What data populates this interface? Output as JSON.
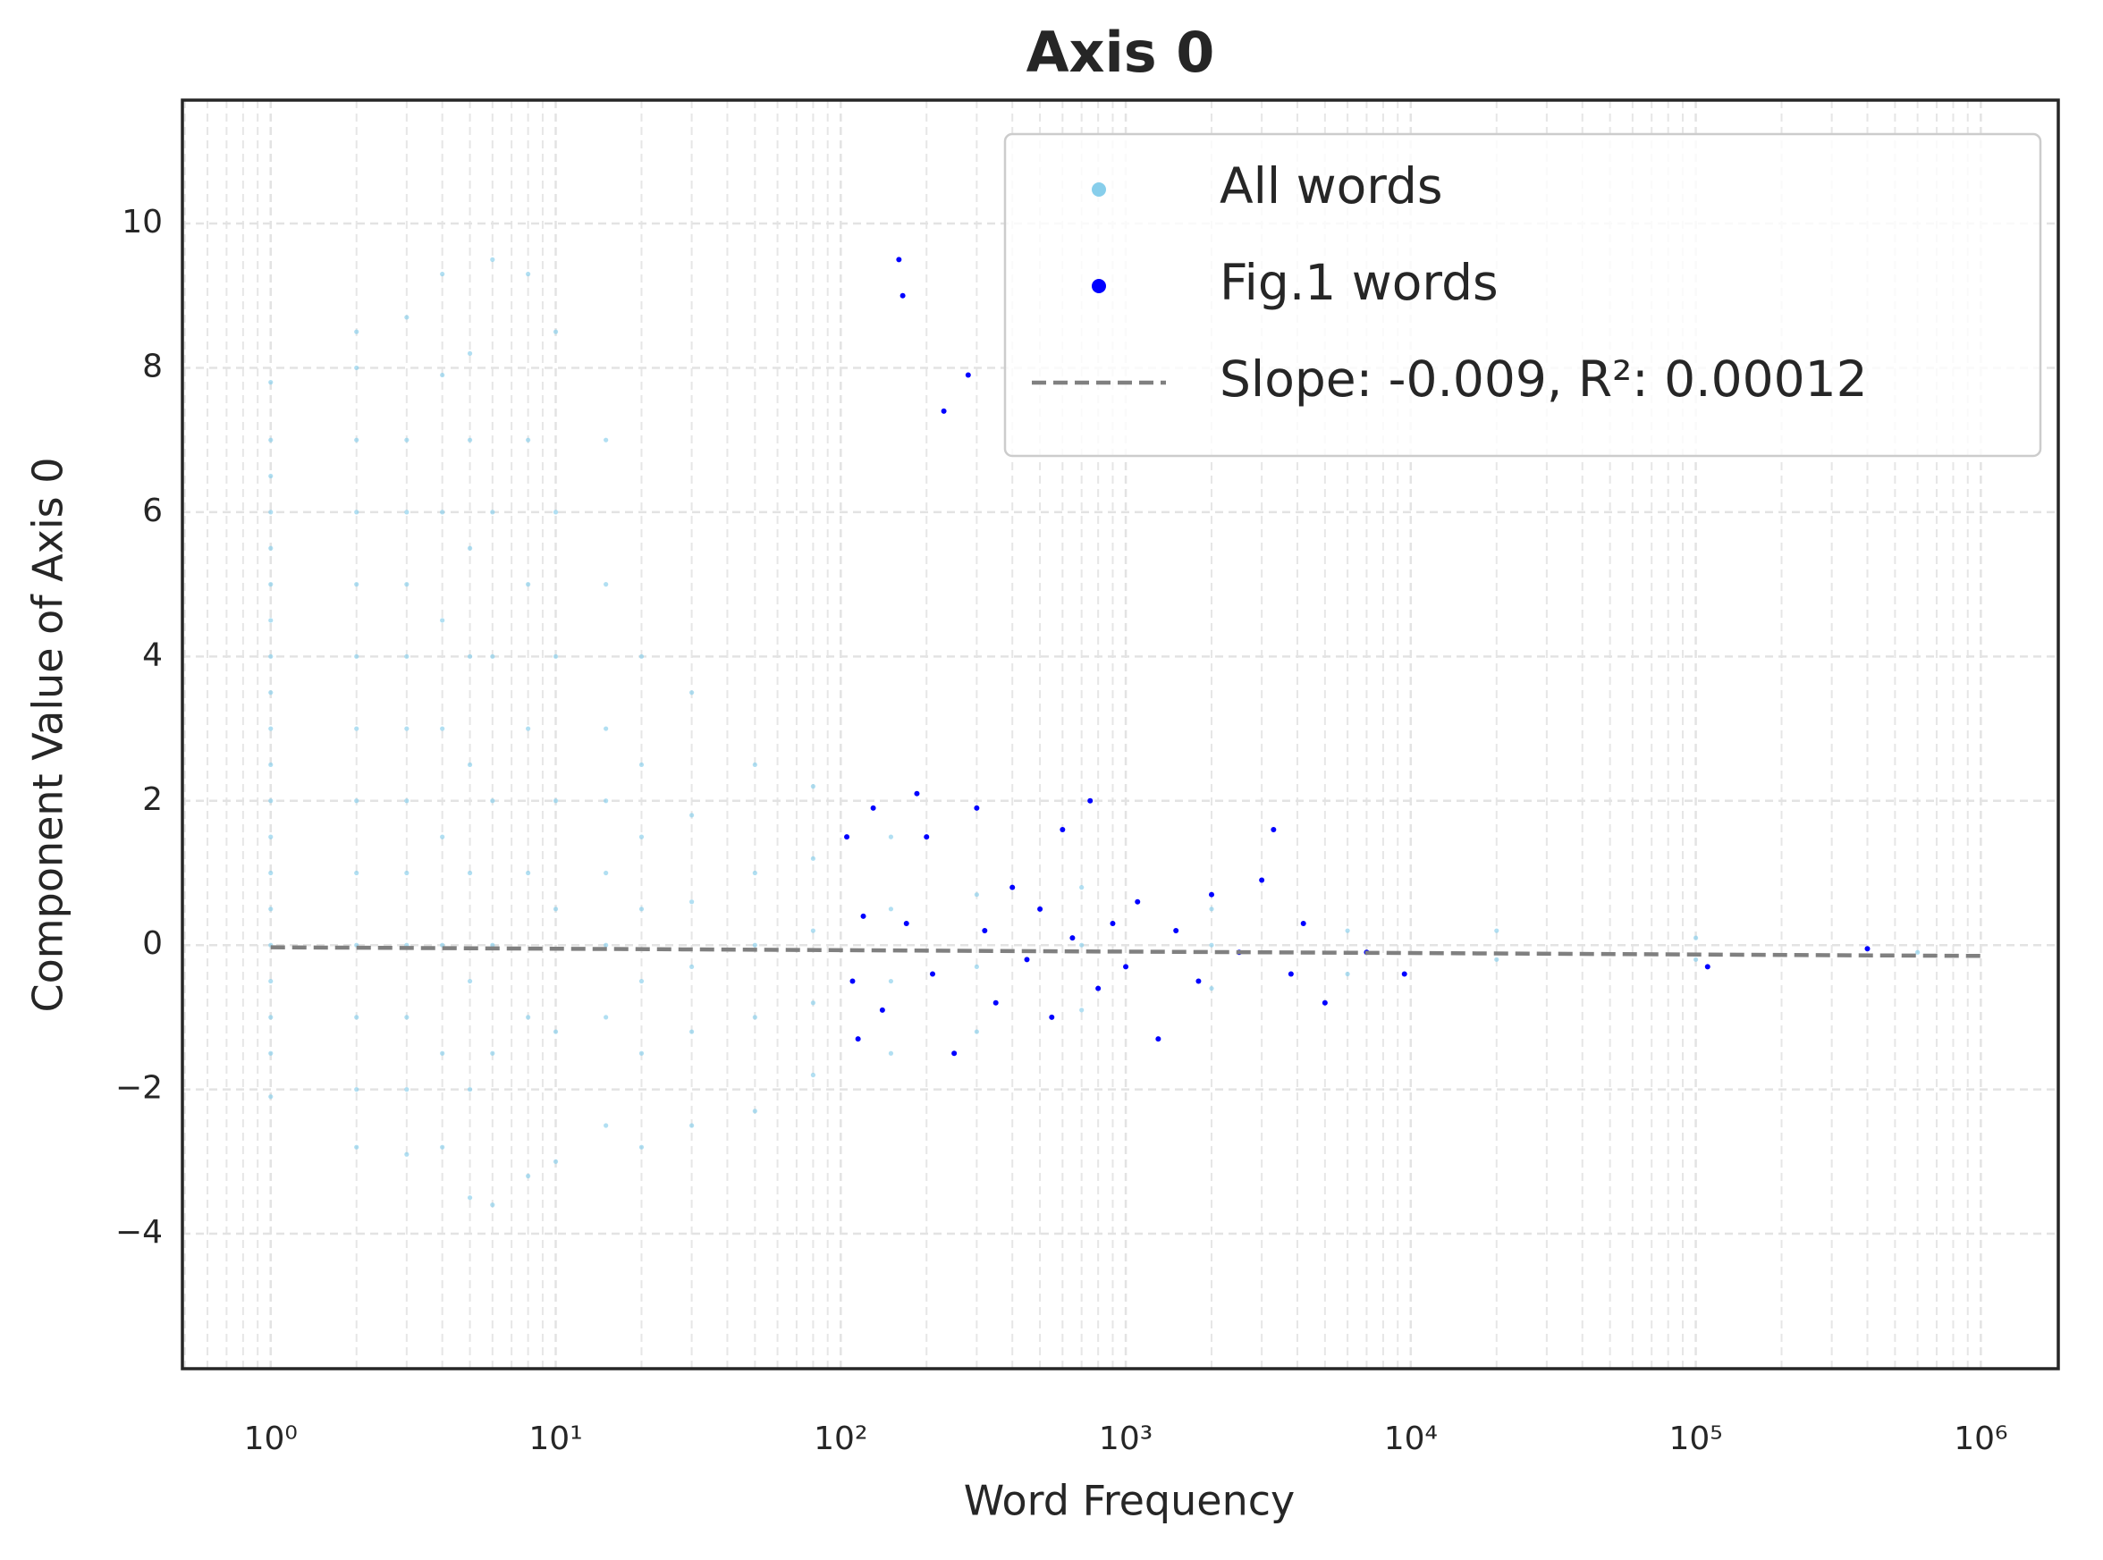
{
  "chart_data": {
    "type": "scatter",
    "title": "Axis 0",
    "xlabel": "Word Frequency",
    "ylabel": "Component Value of Axis 0",
    "xscale": "log",
    "xlim": [
      0.49,
      1870000
    ],
    "ylim": [
      -5.87,
      11.71
    ],
    "xticks": [
      {
        "value": 1,
        "label": "10⁰"
      },
      {
        "value": 10,
        "label": "10¹"
      },
      {
        "value": 100,
        "label": "10²"
      },
      {
        "value": 1000,
        "label": "10³"
      },
      {
        "value": 10000,
        "label": "10⁴"
      },
      {
        "value": 100000,
        "label": "10⁵"
      },
      {
        "value": 1000000,
        "label": "10⁶"
      }
    ],
    "xminorticks": [
      0.5,
      0.6,
      0.7,
      0.8,
      0.9,
      2,
      3,
      4,
      5,
      6,
      7,
      8,
      9,
      20,
      30,
      40,
      50,
      60,
      70,
      80,
      90,
      200,
      300,
      400,
      500,
      600,
      700,
      800,
      900,
      2000,
      3000,
      4000,
      5000,
      6000,
      7000,
      8000,
      9000,
      20000,
      30000,
      40000,
      50000,
      60000,
      70000,
      80000,
      90000,
      200000,
      300000,
      400000,
      500000,
      600000,
      700000,
      800000,
      900000
    ],
    "yticks": [
      {
        "value": -4,
        "label": "−4"
      },
      {
        "value": -2,
        "label": "−2"
      },
      0,
      2,
      4,
      6,
      8,
      10
    ],
    "grid": true,
    "legend": "upper right",
    "series": [
      {
        "name": "All words",
        "color": "#87ceeb",
        "kind": "scatter",
        "x": [
          1,
          1,
          1,
          1,
          1,
          1,
          1,
          1,
          1,
          1,
          1,
          1,
          1,
          1,
          1,
          1,
          1,
          1,
          1,
          1,
          2,
          2,
          2,
          2,
          2,
          2,
          2,
          2,
          2,
          2,
          2,
          2,
          2,
          3,
          3,
          3,
          3,
          3,
          3,
          3,
          3,
          3,
          3,
          3,
          3,
          4,
          4,
          4,
          4,
          4,
          4,
          4,
          4,
          4,
          5,
          5,
          5,
          5,
          5,
          5,
          5,
          5,
          5,
          6,
          6,
          6,
          6,
          6,
          6,
          6,
          8,
          8,
          8,
          8,
          8,
          8,
          8,
          10,
          10,
          10,
          10,
          10,
          10,
          10,
          15,
          15,
          15,
          15,
          15,
          15,
          15,
          15,
          20,
          20,
          20,
          20,
          20,
          20,
          20,
          30,
          30,
          30,
          30,
          30,
          30,
          50,
          50,
          50,
          50,
          50,
          80,
          80,
          80,
          80,
          80,
          150,
          150,
          150,
          150,
          300,
          300,
          300,
          700,
          700,
          700,
          2000,
          2000,
          2000,
          6000,
          6000,
          20000,
          20000,
          100000,
          100000,
          600000
        ],
        "values": [
          -2.1,
          -1.5,
          -1,
          -0.5,
          0,
          0.5,
          1,
          1.5,
          2,
          2.5,
          3,
          3.5,
          4,
          4.5,
          5,
          5.5,
          6,
          6.5,
          7,
          7.8,
          -2.8,
          -2,
          -1,
          0,
          1,
          2,
          3,
          4,
          5,
          6,
          7,
          8,
          8.5,
          -2.9,
          -2,
          -1,
          0,
          1,
          2,
          3,
          4,
          5,
          6,
          7,
          8.7,
          -2.8,
          -1.5,
          0,
          1.5,
          3,
          4.5,
          6,
          7.9,
          9.3,
          -3.5,
          -2,
          -0.5,
          1,
          2.5,
          4,
          5.5,
          7,
          8.2,
          -3.6,
          -1.5,
          0,
          2,
          4,
          6,
          9.5,
          -3.2,
          -1,
          1,
          3,
          5,
          7,
          9.3,
          -3,
          -1.2,
          0.5,
          2,
          4,
          6,
          8.5,
          -2.5,
          -1,
          0,
          1,
          2,
          3,
          5,
          7,
          -2.8,
          -1.5,
          -0.5,
          0.5,
          1.5,
          2.5,
          4,
          -2.5,
          -1.2,
          -0.3,
          0.6,
          1.8,
          3.5,
          -2.3,
          -1,
          0,
          1,
          2.5,
          -1.8,
          -0.8,
          0.2,
          1.2,
          2.2,
          -1.5,
          -0.5,
          0.5,
          1.5,
          -1.2,
          -0.3,
          0.7,
          -0.9,
          0,
          0.8,
          -0.6,
          0,
          0.5,
          -0.4,
          0.2,
          -0.2,
          0.2,
          -0.2,
          0.1,
          -0.1
        ]
      },
      {
        "name": "Fig.1 words",
        "color": "#0000ff",
        "kind": "scatter",
        "x": [
          105,
          110,
          115,
          120,
          130,
          140,
          160,
          165,
          170,
          185,
          200,
          210,
          230,
          250,
          280,
          300,
          320,
          350,
          400,
          450,
          500,
          550,
          600,
          650,
          750,
          800,
          900,
          1000,
          1100,
          1300,
          1500,
          1800,
          2000,
          2500,
          3000,
          3300,
          3800,
          4200,
          5000,
          7000,
          9500,
          110000,
          400000
        ],
        "values": [
          1.5,
          -0.5,
          -1.3,
          0.4,
          1.9,
          -0.9,
          9.5,
          9.0,
          0.3,
          2.1,
          1.5,
          -0.4,
          7.4,
          -1.5,
          7.9,
          1.9,
          0.2,
          -0.8,
          0.8,
          -0.2,
          0.5,
          -1.0,
          1.6,
          0.1,
          2.0,
          -0.6,
          0.3,
          -0.3,
          0.6,
          -1.3,
          0.2,
          -0.5,
          0.7,
          -0.1,
          0.9,
          1.6,
          -0.4,
          0.3,
          -0.8,
          -0.1,
          -0.4,
          -0.3,
          -0.05
        ]
      },
      {
        "name": "Slope: -0.009, R²: 0.00012",
        "color": "#808080",
        "kind": "line",
        "dashed": true,
        "x": [
          1,
          1000000
        ],
        "values": [
          -0.03,
          -0.15
        ]
      }
    ]
  }
}
